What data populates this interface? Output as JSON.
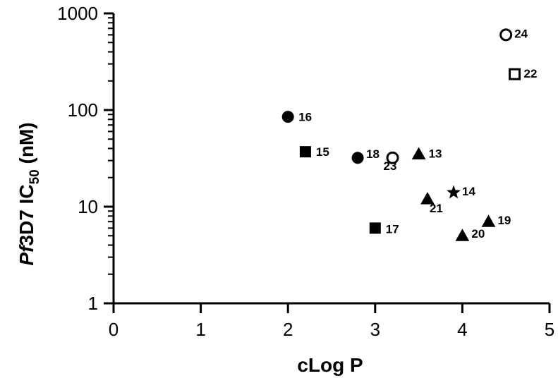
{
  "chart_data": {
    "type": "scatter",
    "xlabel": "cLog P",
    "ylabel": {
      "italic": "Pf",
      "main": "3D7 IC",
      "sub": "50",
      "unit": " (nM)"
    },
    "xlim": [
      0,
      5
    ],
    "ylim": [
      1,
      1000
    ],
    "y_scale": "log",
    "grid": false,
    "x_ticks": [
      "0",
      "1",
      "2",
      "3",
      "4",
      "5"
    ],
    "y_ticks": [
      "1",
      "10",
      "100",
      "1000"
    ],
    "points": [
      {
        "label": "13",
        "x": 3.5,
        "y": 35,
        "marker": "triangle",
        "filled": true
      },
      {
        "label": "14",
        "x": 3.9,
        "y": 14,
        "marker": "star",
        "filled": true
      },
      {
        "label": "15",
        "x": 2.2,
        "y": 37,
        "marker": "square",
        "filled": true
      },
      {
        "label": "16",
        "x": 2.0,
        "y": 85,
        "marker": "circle",
        "filled": true
      },
      {
        "label": "17",
        "x": 3.0,
        "y": 6,
        "marker": "square",
        "filled": true
      },
      {
        "label": "18",
        "x": 2.8,
        "y": 32,
        "marker": "circle",
        "filled": true
      },
      {
        "label": "19",
        "x": 4.3,
        "y": 7,
        "marker": "triangle",
        "filled": true
      },
      {
        "label": "20",
        "x": 4.0,
        "y": 5,
        "marker": "triangle",
        "filled": true
      },
      {
        "label": "21",
        "x": 3.6,
        "y": 12,
        "marker": "triangle",
        "filled": true
      },
      {
        "label": "22",
        "x": 4.6,
        "y": 235,
        "marker": "square",
        "filled": false
      },
      {
        "label": "23",
        "x": 3.2,
        "y": 32,
        "marker": "circle",
        "filled": false
      },
      {
        "label": "24",
        "x": 4.5,
        "y": 600,
        "marker": "circle",
        "filled": false
      }
    ]
  }
}
